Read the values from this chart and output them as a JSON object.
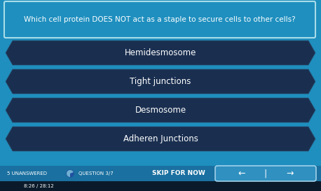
{
  "bg_color": "#1e8fbf",
  "question_text": "Which cell protein DOES NOT act as a staple to secure cells to other cells?",
  "question_box_edge_color": "#a8dce8",
  "question_box_face_color": "#1e8fbf",
  "question_text_color": "#ffffff",
  "options": [
    "Hemidesmosome",
    "Tight junctions",
    "Desmosome",
    "Adheren Junctions"
  ],
  "option_bg_color": "#1a2f50",
  "option_edge_color": "#2a5070",
  "option_text_color": "#ffffff",
  "bottom_bar_color": "#1a70a0",
  "bottom_text_left": "5 UNANSWERED",
  "bottom_text_question": "QUESTION 3/7",
  "bottom_text_skip": "SKIP FOR NOW",
  "bottom_text_color": "#ffffff",
  "footer_bar_color": "#0a1a2a",
  "footer_time": "8:26 / 28:12",
  "nav_box_color": "#3090c0",
  "fig_width": 4.58,
  "fig_height": 2.73,
  "dpi": 100
}
